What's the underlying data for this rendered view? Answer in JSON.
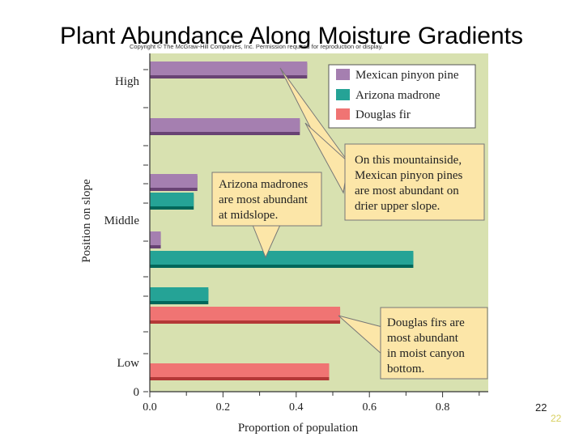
{
  "slide": {
    "title": "Plant Abundance Along Moisture Gradients",
    "copyright": "Copyright © The McGraw-Hill Companies, Inc. Permission required for reproduction or display.",
    "page_number": "22",
    "page_number_ghost": "22"
  },
  "chart_data": {
    "type": "bar",
    "orientation": "horizontal",
    "xlabel": "Proportion of population",
    "ylabel": "Position on slope",
    "xlim": [
      0,
      0.9
    ],
    "x_ticks": [
      "0.0",
      "0.2",
      "0.4",
      "0.6",
      "0.8"
    ],
    "y_tick_labels": [
      "High",
      "Middle",
      "Low"
    ],
    "y_origin_label": "0",
    "bars": [
      {
        "series": "Mexican pinyon pine",
        "value": 0.43
      },
      {
        "series": "Mexican pinyon pine",
        "value": 0.41
      },
      {
        "series": "Mexican pinyon pine",
        "value": 0.13
      },
      {
        "series": "Arizona madrone",
        "value": 0.12
      },
      {
        "series": "Mexican pinyon pine",
        "value": 0.03
      },
      {
        "series": "Arizona madrone",
        "value": 0.72
      },
      {
        "series": "Arizona madrone",
        "value": 0.16
      },
      {
        "series": "Douglas fir",
        "value": 0.52
      },
      {
        "series": "Douglas fir",
        "value": 0.49
      }
    ],
    "legend": [
      {
        "name": "Mexican pinyon pine",
        "color": "#a57fb0"
      },
      {
        "name": "Arizona madrone",
        "color": "#25a396"
      },
      {
        "name": "Douglas fir",
        "color": "#f07473"
      }
    ],
    "legend_position": "top-right",
    "background_color": "#d8e1b0",
    "callout_color": "#fce6a8",
    "annotations": [
      {
        "lines": [
          "On this mountainside,",
          "Mexican pinyon pines",
          "are most abundant on",
          "drier upper slope."
        ]
      },
      {
        "lines": [
          "Arizona madrones",
          "are most abundant",
          "at midslope."
        ]
      },
      {
        "lines": [
          "Douglas firs are",
          "most abundant",
          "in moist canyon",
          "bottom."
        ]
      }
    ]
  }
}
